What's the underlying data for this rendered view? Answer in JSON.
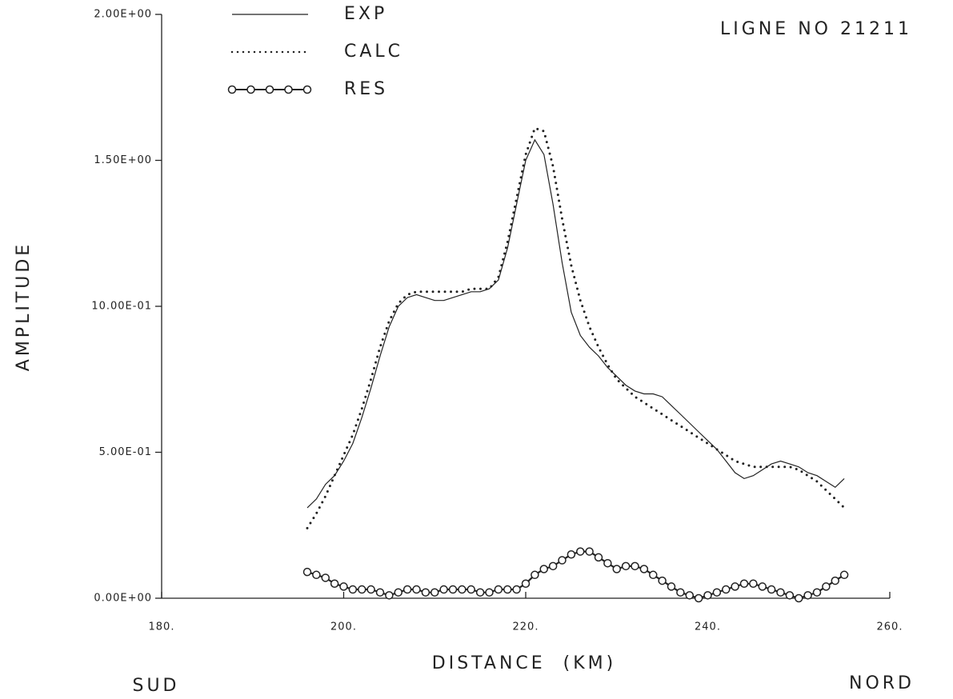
{
  "chart_data": {
    "type": "line",
    "annotations": [
      "LIGNE NO 21211",
      "SUD",
      "NORD"
    ],
    "x_label": "DISTANCE  (KM)",
    "y_label": "AMPLITUDE",
    "xlim": [
      180,
      260
    ],
    "ylim": [
      0,
      2
    ],
    "xticks": [
      {
        "value": 180,
        "label": "180."
      },
      {
        "value": 200,
        "label": "200."
      },
      {
        "value": 220,
        "label": "220."
      },
      {
        "value": 240,
        "label": "240."
      },
      {
        "value": 260,
        "label": "260."
      }
    ],
    "yticks": [
      {
        "value": 0,
        "label": "0.00E+00"
      },
      {
        "value": 0.5,
        "label": "5.00E-01"
      },
      {
        "value": 1,
        "label": "10.00E-01"
      },
      {
        "value": 1.5,
        "label": "1.50E+00"
      },
      {
        "value": 2,
        "label": "2.00E+00"
      }
    ],
    "legend": "upper left",
    "x": [
      196,
      197,
      198,
      199,
      200,
      201,
      202,
      203,
      204,
      205,
      206,
      207,
      208,
      209,
      210,
      211,
      212,
      213,
      214,
      215,
      216,
      217,
      218,
      219,
      220,
      221,
      222,
      223,
      224,
      225,
      226,
      227,
      228,
      229,
      230,
      231,
      232,
      233,
      234,
      235,
      236,
      237,
      238,
      239,
      240,
      241,
      242,
      243,
      244,
      245,
      246,
      247,
      248,
      249,
      250,
      251,
      252,
      253,
      254,
      255
    ],
    "series": [
      {
        "name": "EXP",
        "color": "#222",
        "style": "solid",
        "values": [
          0.31,
          0.34,
          0.39,
          0.42,
          0.47,
          0.53,
          0.62,
          0.72,
          0.83,
          0.93,
          1.0,
          1.03,
          1.04,
          1.03,
          1.02,
          1.02,
          1.03,
          1.04,
          1.05,
          1.05,
          1.06,
          1.09,
          1.2,
          1.35,
          1.5,
          1.57,
          1.52,
          1.35,
          1.15,
          0.98,
          0.9,
          0.86,
          0.83,
          0.79,
          0.76,
          0.73,
          0.71,
          0.7,
          0.7,
          0.69,
          0.66,
          0.63,
          0.6,
          0.57,
          0.54,
          0.51,
          0.47,
          0.43,
          0.41,
          0.42,
          0.44,
          0.46,
          0.47,
          0.46,
          0.45,
          0.43,
          0.42,
          0.4,
          0.38,
          0.41
        ]
      },
      {
        "name": "CALC",
        "color": "#222",
        "style": "dotted",
        "values": [
          0.24,
          0.29,
          0.35,
          0.42,
          0.49,
          0.56,
          0.65,
          0.75,
          0.86,
          0.95,
          1.01,
          1.04,
          1.05,
          1.05,
          1.05,
          1.05,
          1.05,
          1.05,
          1.06,
          1.06,
          1.06,
          1.1,
          1.22,
          1.37,
          1.52,
          1.61,
          1.6,
          1.48,
          1.3,
          1.14,
          1.02,
          0.93,
          0.86,
          0.8,
          0.75,
          0.72,
          0.69,
          0.67,
          0.65,
          0.63,
          0.61,
          0.59,
          0.57,
          0.55,
          0.53,
          0.51,
          0.49,
          0.47,
          0.46,
          0.45,
          0.45,
          0.45,
          0.45,
          0.45,
          0.44,
          0.42,
          0.4,
          0.37,
          0.34,
          0.31
        ]
      },
      {
        "name": "RES",
        "color": "#222",
        "style": "circles",
        "values": [
          0.09,
          0.08,
          0.07,
          0.05,
          0.04,
          0.03,
          0.03,
          0.03,
          0.02,
          0.01,
          0.02,
          0.03,
          0.03,
          0.02,
          0.02,
          0.03,
          0.03,
          0.03,
          0.03,
          0.02,
          0.02,
          0.03,
          0.03,
          0.03,
          0.05,
          0.08,
          0.1,
          0.11,
          0.13,
          0.15,
          0.16,
          0.16,
          0.14,
          0.12,
          0.1,
          0.11,
          0.11,
          0.1,
          0.08,
          0.06,
          0.04,
          0.02,
          0.01,
          0.0,
          0.01,
          0.02,
          0.03,
          0.04,
          0.05,
          0.05,
          0.04,
          0.03,
          0.02,
          0.01,
          0.0,
          0.01,
          0.02,
          0.04,
          0.06,
          0.08
        ]
      }
    ]
  }
}
